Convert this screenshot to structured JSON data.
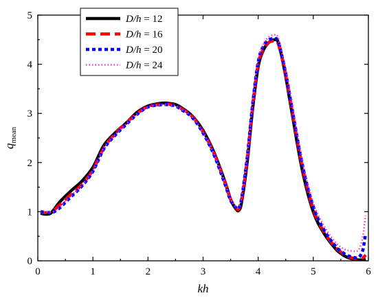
{
  "chart_data": {
    "type": "line",
    "title": "",
    "xlabel": "kh",
    "ylabel": "q",
    "ylabel_sub": "mean",
    "xlim": [
      0,
      6
    ],
    "ylim": [
      0,
      5
    ],
    "xticks": [
      0,
      1,
      2,
      3,
      4,
      5,
      6
    ],
    "yticks": [
      0,
      1,
      2,
      3,
      4,
      5
    ],
    "grid": false,
    "legend_position": "top-left",
    "series": [
      {
        "name_prefix": "D/h",
        "name_value": "= 12",
        "color": "#000000",
        "style": "solid",
        "x": [
          0.05,
          0.12,
          0.22,
          0.3,
          0.4,
          0.6,
          0.8,
          1.0,
          1.2,
          1.4,
          1.6,
          1.8,
          2.0,
          2.2,
          2.3,
          2.4,
          2.5,
          2.6,
          2.8,
          3.0,
          3.2,
          3.4,
          3.5,
          3.6,
          3.65,
          3.7,
          3.8,
          3.9,
          4.0,
          4.1,
          4.2,
          4.3,
          4.35,
          4.4,
          4.5,
          4.6,
          4.8,
          5.0,
          5.2,
          5.4,
          5.5,
          5.6,
          5.7,
          5.8,
          5.9,
          5.95
        ],
        "y": [
          0.97,
          0.95,
          0.96,
          1.05,
          1.2,
          1.42,
          1.62,
          1.9,
          2.35,
          2.6,
          2.8,
          3.02,
          3.15,
          3.2,
          3.21,
          3.2,
          3.18,
          3.12,
          2.95,
          2.65,
          2.2,
          1.6,
          1.25,
          1.05,
          1.03,
          1.2,
          2.0,
          3.1,
          3.95,
          4.3,
          4.45,
          4.5,
          4.48,
          4.3,
          3.75,
          3.1,
          1.85,
          1.0,
          0.55,
          0.25,
          0.15,
          0.08,
          0.04,
          0.02,
          0.02,
          0.04
        ]
      },
      {
        "name_prefix": "D/h",
        "name_value": "= 16",
        "color": "#ff0000",
        "style": "dash",
        "x": [
          0.05,
          0.12,
          0.22,
          0.3,
          0.4,
          0.6,
          0.8,
          1.0,
          1.2,
          1.4,
          1.6,
          1.8,
          2.0,
          2.2,
          2.3,
          2.4,
          2.5,
          2.6,
          2.8,
          3.0,
          3.2,
          3.4,
          3.5,
          3.6,
          3.65,
          3.7,
          3.8,
          3.9,
          4.0,
          4.1,
          4.2,
          4.3,
          4.35,
          4.4,
          4.5,
          4.6,
          4.8,
          5.0,
          5.2,
          5.4,
          5.5,
          5.6,
          5.7,
          5.8,
          5.9,
          5.95
        ],
        "y": [
          0.99,
          0.98,
          0.99,
          1.04,
          1.14,
          1.35,
          1.55,
          1.85,
          2.3,
          2.58,
          2.8,
          3.0,
          3.14,
          3.18,
          3.19,
          3.18,
          3.16,
          3.1,
          2.94,
          2.62,
          2.18,
          1.58,
          1.25,
          1.07,
          1.06,
          1.24,
          2.05,
          3.15,
          4.0,
          4.32,
          4.45,
          4.47,
          4.45,
          4.28,
          3.78,
          3.15,
          1.92,
          1.05,
          0.58,
          0.28,
          0.18,
          0.1,
          0.06,
          0.04,
          0.06,
          0.12
        ]
      },
      {
        "name_prefix": "D/h",
        "name_value": "= 20",
        "color": "#0000ff",
        "style": "dot",
        "x": [
          0.05,
          0.12,
          0.22,
          0.3,
          0.4,
          0.6,
          0.8,
          1.0,
          1.2,
          1.4,
          1.6,
          1.8,
          2.0,
          2.2,
          2.3,
          2.4,
          2.5,
          2.6,
          2.8,
          3.0,
          3.2,
          3.4,
          3.5,
          3.6,
          3.65,
          3.7,
          3.8,
          3.9,
          4.0,
          4.1,
          4.2,
          4.3,
          4.35,
          4.4,
          4.5,
          4.6,
          4.8,
          5.0,
          5.2,
          5.4,
          5.5,
          5.6,
          5.7,
          5.8,
          5.85,
          5.9,
          5.95
        ],
        "y": [
          1.0,
          0.99,
          0.98,
          1.0,
          1.08,
          1.3,
          1.52,
          1.82,
          2.28,
          2.55,
          2.77,
          2.98,
          3.13,
          3.17,
          3.18,
          3.17,
          3.15,
          3.08,
          2.92,
          2.6,
          2.15,
          1.55,
          1.23,
          1.08,
          1.08,
          1.28,
          2.1,
          3.2,
          4.05,
          4.38,
          4.5,
          4.52,
          4.5,
          4.32,
          3.82,
          3.2,
          1.97,
          1.1,
          0.62,
          0.3,
          0.2,
          0.12,
          0.08,
          0.06,
          0.1,
          0.22,
          0.55
        ]
      },
      {
        "name_prefix": "D/h",
        "name_value": "= 24",
        "color": "#ff33cc",
        "style": "sparse-dot",
        "x": [
          0.05,
          0.12,
          0.22,
          0.3,
          0.4,
          0.6,
          0.8,
          1.0,
          1.2,
          1.4,
          1.6,
          1.8,
          2.0,
          2.2,
          2.3,
          2.4,
          2.5,
          2.6,
          2.8,
          3.0,
          3.2,
          3.4,
          3.5,
          3.6,
          3.65,
          3.7,
          3.8,
          3.9,
          4.0,
          4.1,
          4.2,
          4.3,
          4.35,
          4.4,
          4.5,
          4.6,
          4.8,
          5.0,
          5.2,
          5.4,
          5.5,
          5.6,
          5.7,
          5.8,
          5.85,
          5.9,
          5.95
        ],
        "y": [
          1.0,
          1.0,
          0.99,
          1.01,
          1.1,
          1.32,
          1.54,
          1.84,
          2.3,
          2.56,
          2.78,
          2.99,
          3.13,
          3.17,
          3.18,
          3.17,
          3.15,
          3.09,
          2.93,
          2.61,
          2.17,
          1.57,
          1.25,
          1.1,
          1.1,
          1.3,
          2.12,
          3.22,
          4.08,
          4.42,
          4.56,
          4.6,
          4.57,
          4.38,
          3.9,
          3.3,
          2.05,
          1.18,
          0.7,
          0.38,
          0.28,
          0.22,
          0.2,
          0.2,
          0.28,
          0.5,
          0.92
        ]
      }
    ]
  }
}
